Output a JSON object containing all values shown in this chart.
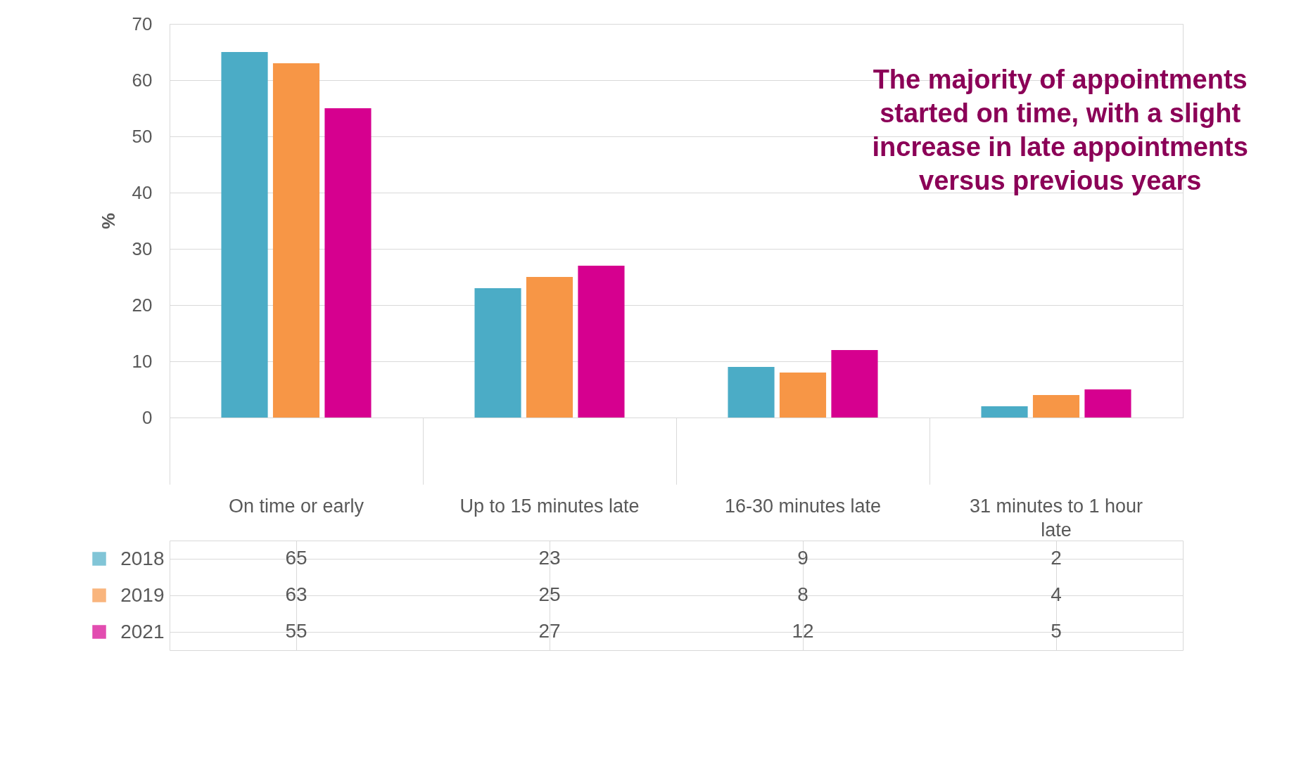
{
  "chart_data": {
    "type": "bar",
    "ylabel": "%",
    "categories": [
      "On time or early",
      "Up to 15 minutes late",
      "16-30 minutes late",
      "31 minutes to 1 hour late"
    ],
    "series": [
      {
        "name": "2018",
        "color": "#4bacc6",
        "values": [
          65,
          23,
          9,
          2
        ]
      },
      {
        "name": "2019",
        "color": "#f79646",
        "values": [
          63,
          25,
          8,
          4
        ]
      },
      {
        "name": "2021",
        "color": "#d6008f",
        "values": [
          55,
          27,
          12,
          5
        ]
      }
    ],
    "ylim": [
      0,
      70
    ],
    "yticks": [
      0,
      10,
      20,
      30,
      40,
      50,
      60,
      70
    ],
    "grid": "y",
    "legend": "bottom",
    "data_labels": true,
    "annotations": [
      "The majority of appointments started on time, with a slight increase in late appointments versus previous years"
    ]
  }
}
